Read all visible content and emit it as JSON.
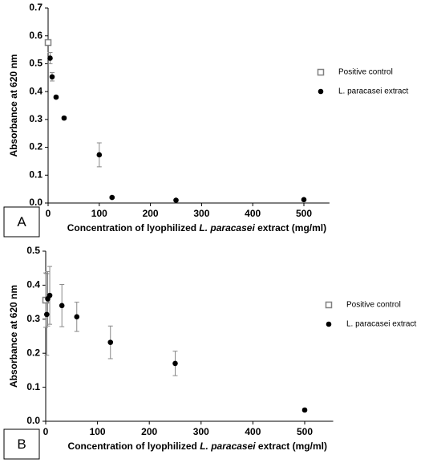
{
  "chart_data": [
    {
      "type": "scatter",
      "panel_label": "A",
      "ylabel": "Absorbance at 620 nm",
      "xlabel": [
        "Concentration of lyophilized ",
        "L. paracasei",
        " extract (mg/ml)"
      ],
      "xlim": [
        0,
        550
      ],
      "ylim": [
        0,
        0.7
      ],
      "xticks": [
        0,
        100,
        200,
        300,
        400,
        500
      ],
      "yticks": [
        {
          "value": 0,
          "label": "0.0"
        },
        0.1,
        0.2,
        0.3,
        0.4,
        0.5,
        0.6,
        0.7
      ],
      "legend": "right",
      "series": [
        {
          "name": "Positive control",
          "color": "#808080",
          "marker": "square",
          "x": [
            0
          ],
          "values": [
            0.576
          ],
          "errors": [
            0.01
          ]
        },
        {
          "name": "L. paracasei extract",
          "color": "#000000",
          "marker": "circle",
          "x": [
            3.9,
            7.8,
            15.6,
            31.25,
            100,
            125,
            250,
            500
          ],
          "values": [
            0.52,
            0.453,
            0.38,
            0.305,
            0.173,
            0.02,
            0.01,
            0.012
          ],
          "errors": [
            0.02,
            0.015,
            0.005,
            0.005,
            0.043,
            0.004,
            0.004,
            0.004
          ]
        }
      ]
    },
    {
      "type": "scatter",
      "panel_label": "B",
      "ylabel": "Absorbance at 620 nm",
      "xlabel": [
        "Concentration of lyophilized ",
        "L. paracasei",
        " extract (mg/ml)"
      ],
      "xlim": [
        0,
        555
      ],
      "ylim": [
        0,
        0.5
      ],
      "xticks": [
        0,
        100,
        200,
        300,
        400,
        500
      ],
      "yticks": [
        {
          "value": 0,
          "label": "0.0"
        },
        0.1,
        0.2,
        0.3,
        0.4,
        0.5
      ],
      "legend": "right",
      "series": [
        {
          "name": "Positive control",
          "color": "#808080",
          "marker": "square",
          "x": [
            0
          ],
          "values": [
            0.356
          ],
          "errors": [
            0.08
          ]
        },
        {
          "name": "L. paracasei extract",
          "color": "#000000",
          "marker": "circle",
          "x": [
            2,
            3.9,
            7.8,
            31.25,
            60,
            125,
            250,
            500
          ],
          "values": [
            0.314,
            0.36,
            0.37,
            0.34,
            0.307,
            0.232,
            0.17,
            0.033
          ],
          "errors": [
            0.12,
            0.08,
            0.085,
            0.062,
            0.043,
            0.048,
            0.036,
            0.003
          ]
        }
      ]
    }
  ]
}
